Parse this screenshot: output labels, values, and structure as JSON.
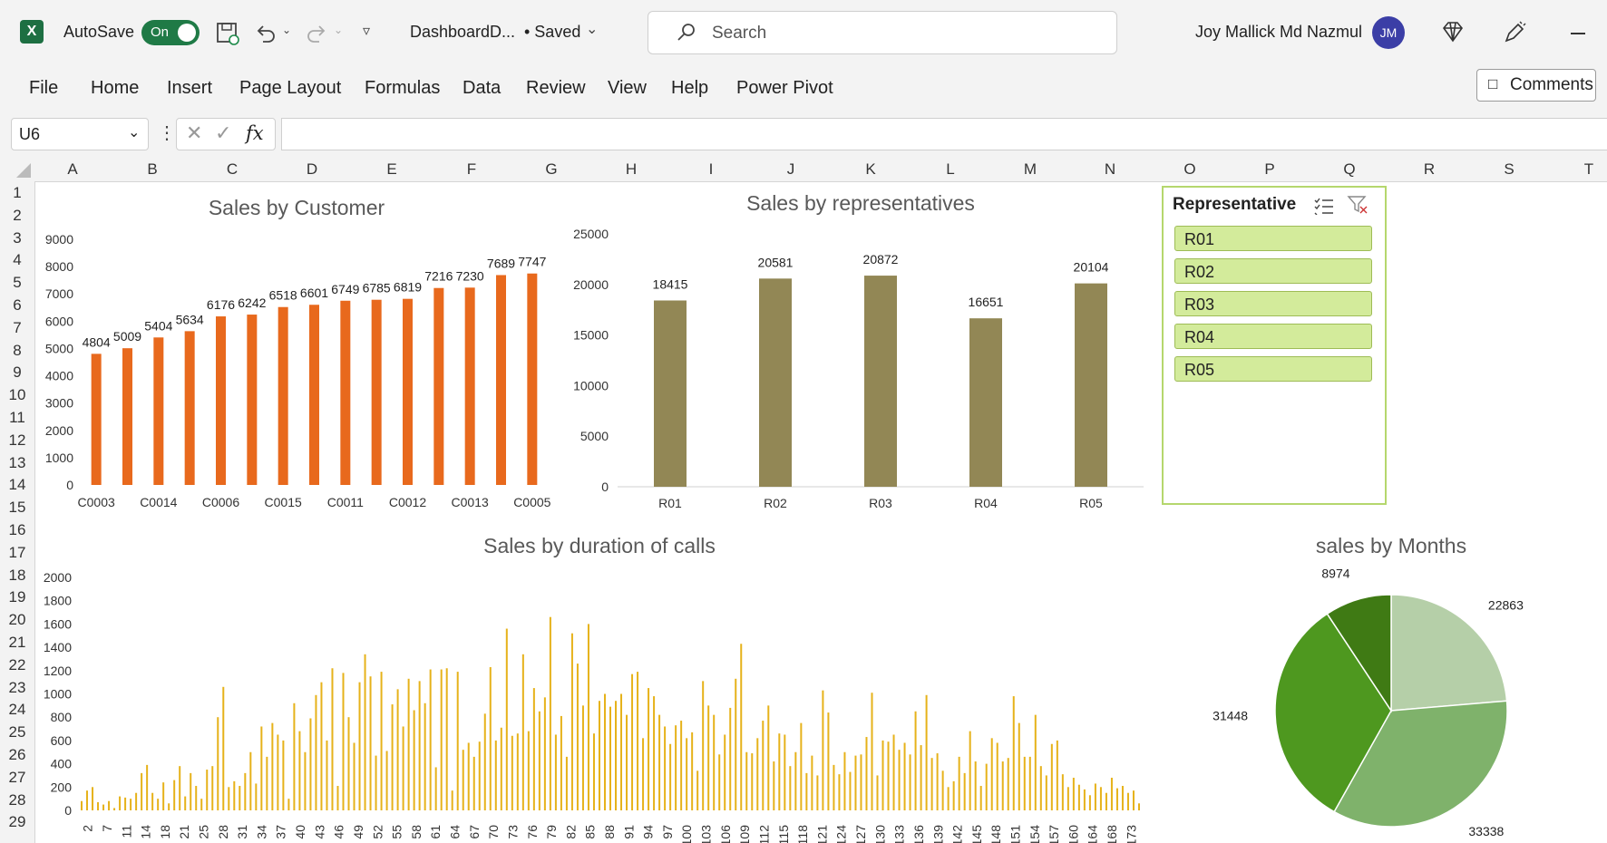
{
  "titlebar": {
    "autosave_label": "AutoSave",
    "autosave_state": "On",
    "file_name": "DashboardD...",
    "saved_status": "• Saved",
    "search_placeholder": "Search",
    "user_name": "Joy Mallick Md Nazmul",
    "user_initials": "JM"
  },
  "menu": [
    "File",
    "Home",
    "Insert",
    "Page Layout",
    "Formulas",
    "Data",
    "Review",
    "View",
    "Help",
    "Power Pivot"
  ],
  "comments_label": "Comments",
  "formula_bar": {
    "name_box": "U6",
    "fx": "fx",
    "value": ""
  },
  "columns": [
    "A",
    "B",
    "C",
    "D",
    "E",
    "F",
    "G",
    "H",
    "I",
    "J",
    "K",
    "L",
    "M",
    "N",
    "O",
    "P",
    "Q",
    "R",
    "S",
    "T"
  ],
  "rows": [
    "1",
    "2",
    "3",
    "4",
    "5",
    "6",
    "7",
    "8",
    "9",
    "10",
    "11",
    "12",
    "13",
    "14",
    "15",
    "16",
    "17",
    "18",
    "19",
    "20",
    "21",
    "22",
    "23",
    "24",
    "25",
    "26",
    "27",
    "28",
    "29"
  ],
  "slicer": {
    "title": "Representative",
    "items": [
      "R01",
      "R02",
      "R03",
      "R04",
      "R05"
    ]
  },
  "chart_data": [
    {
      "type": "bar",
      "title": "Sales by Customer",
      "color": "#e8691d",
      "ylim": [
        0,
        9000
      ],
      "yticks": [
        0,
        1000,
        2000,
        3000,
        4000,
        5000,
        6000,
        7000,
        8000,
        9000
      ],
      "x_tick_labels": [
        "C0003",
        "C0014",
        "C0006",
        "C0015",
        "C0011",
        "C0012",
        "C0013",
        "C0005"
      ],
      "values": [
        4804,
        5009,
        5404,
        5634,
        6176,
        6242,
        6518,
        6601,
        6749,
        6785,
        6819,
        7216,
        7230,
        7689,
        7747
      ]
    },
    {
      "type": "bar",
      "title": "Sales by representatives",
      "color": "#928755",
      "ylim": [
        0,
        25000
      ],
      "yticks": [
        0,
        5000,
        10000,
        15000,
        20000,
        25000
      ],
      "categories": [
        "R01",
        "R02",
        "R03",
        "R04",
        "R05"
      ],
      "values": [
        18415,
        20581,
        20872,
        16651,
        20104
      ]
    },
    {
      "type": "bar",
      "title": "Sales by duration of calls",
      "color": "#e6b21a",
      "ylim": [
        0,
        2000
      ],
      "yticks": [
        0,
        200,
        400,
        600,
        800,
        1000,
        1200,
        1400,
        1600,
        1800,
        2000
      ],
      "x_tick_labels": [
        "2",
        "7",
        "11",
        "14",
        "18",
        "21",
        "25",
        "28",
        "31",
        "34",
        "37",
        "40",
        "43",
        "46",
        "49",
        "52",
        "55",
        "58",
        "61",
        "64",
        "67",
        "70",
        "73",
        "76",
        "79",
        "82",
        "85",
        "88",
        "91",
        "94",
        "97",
        "100",
        "103",
        "106",
        "109",
        "112",
        "115",
        "118",
        "121",
        "124",
        "127",
        "130",
        "133",
        "136",
        "139",
        "142",
        "145",
        "148",
        "151",
        "154",
        "157",
        "160",
        "164",
        "168",
        "173"
      ],
      "values": [
        80,
        170,
        200,
        70,
        50,
        80,
        20,
        120,
        110,
        100,
        150,
        320,
        390,
        150,
        100,
        240,
        60,
        260,
        380,
        120,
        320,
        210,
        100,
        350,
        380,
        800,
        1060,
        200,
        250,
        210,
        320,
        500,
        230,
        720,
        460,
        750,
        650,
        600,
        100,
        920,
        680,
        500,
        790,
        990,
        1100,
        600,
        1220,
        210,
        1180,
        800,
        580,
        1100,
        1340,
        1150,
        470,
        1190,
        510,
        910,
        1040,
        720,
        1130,
        860,
        1110,
        920,
        1210,
        370,
        1210,
        1220,
        170,
        1190,
        520,
        580,
        460,
        590,
        830,
        1230,
        600,
        710,
        1560,
        640,
        660,
        1340,
        680,
        1050,
        850,
        970,
        1660,
        650,
        810,
        460,
        1520,
        1260,
        900,
        1600,
        660,
        940,
        1000,
        890,
        940,
        1000,
        820,
        1170,
        1190,
        620,
        1050,
        980,
        820,
        720,
        570,
        730,
        770,
        620,
        670,
        340,
        1110,
        900,
        820,
        480,
        650,
        880,
        1130,
        1430,
        500,
        490,
        620,
        770,
        900,
        420,
        660,
        650,
        380,
        500,
        750,
        320,
        470,
        300,
        1030,
        840,
        390,
        310,
        500,
        330,
        470,
        480,
        630,
        1010,
        300,
        600,
        590,
        650,
        520,
        580,
        480,
        850,
        560,
        990,
        450,
        490,
        340,
        200,
        250,
        460,
        320,
        680,
        420,
        210,
        400,
        620,
        580,
        420,
        450,
        980,
        750,
        460,
        460,
        820,
        380,
        300,
        570,
        600,
        310,
        200,
        280,
        220,
        180,
        130,
        230,
        200,
        150,
        280,
        190,
        210,
        150,
        170,
        60
      ],
      "values_note_hidden": true
    },
    {
      "type": "pie",
      "title": "sales by Months",
      "values": [
        22863,
        33338,
        31448,
        8974
      ],
      "colors": [
        "#b5cfa8",
        "#7fb26b",
        "#4e981f",
        "#3f7a14"
      ]
    }
  ]
}
